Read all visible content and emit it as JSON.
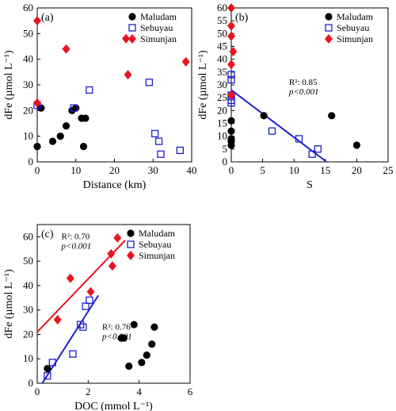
{
  "chart_data": [
    {
      "id": "a",
      "type": "scatter",
      "panel_label": "(a)",
      "xlabel": "Distance (km)",
      "ylabel": "dFe (µmol L⁻¹)",
      "xlim": [
        0,
        40
      ],
      "ylim": [
        0,
        60
      ],
      "xticks": [
        0,
        10,
        20,
        30,
        40
      ],
      "yticks": [
        0,
        10,
        20,
        30,
        40,
        50,
        60
      ],
      "legend_position": "top-right",
      "series": [
        {
          "name": "Maludam",
          "marker": "circle",
          "color": "#000000",
          "points": [
            [
              0,
              6
            ],
            [
              1,
              21
            ],
            [
              4,
              8
            ],
            [
              6,
              10
            ],
            [
              7.5,
              14
            ],
            [
              9,
              20
            ],
            [
              10,
              21
            ],
            [
              11.5,
              17
            ],
            [
              12,
              6
            ],
            [
              12.5,
              17
            ]
          ]
        },
        {
          "name": "Sebuyau",
          "marker": "square",
          "color": "#1f1fd0",
          "points": [
            [
              0,
              22
            ],
            [
              9.5,
              21
            ],
            [
              13.5,
              28
            ],
            [
              29,
              31
            ],
            [
              30.5,
              11
            ],
            [
              31.5,
              8
            ],
            [
              32,
              3
            ],
            [
              37,
              4.5
            ]
          ]
        },
        {
          "name": "Simunjan",
          "marker": "diamond",
          "color": "#e8141e",
          "points": [
            [
              0,
              55
            ],
            [
              0,
              23
            ],
            [
              7.5,
              44
            ],
            [
              23,
              48
            ],
            [
              23.5,
              34
            ],
            [
              38.5,
              39
            ]
          ]
        }
      ]
    },
    {
      "id": "b",
      "type": "scatter",
      "panel_label": "(b)",
      "xlabel": "S",
      "ylabel": "dFe (µmol L⁻¹)",
      "xlim": [
        0,
        25
      ],
      "ylim": [
        0,
        60
      ],
      "xticks": [
        0,
        5,
        10,
        15,
        20,
        25
      ],
      "yticks": [
        0,
        5,
        10,
        15,
        20,
        25,
        30,
        35,
        40,
        45,
        50,
        55,
        60
      ],
      "legend_position": "top-right",
      "annotation": {
        "r2": "R²: 0.85",
        "p": "p<0.001"
      },
      "fit_line": {
        "color": "#1f1fd0",
        "from": [
          0,
          28
        ],
        "to": [
          15.2,
          0
        ]
      },
      "series": [
        {
          "name": "Maludam",
          "marker": "circle",
          "color": "#000000",
          "points": [
            [
              0,
              6.5
            ],
            [
              0,
              8
            ],
            [
              0,
              9
            ],
            [
              0,
              12
            ],
            [
              0,
              16
            ],
            [
              5.2,
              18
            ],
            [
              16,
              18
            ],
            [
              20,
              6.5
            ]
          ]
        },
        {
          "name": "Sebuyau",
          "marker": "square",
          "color": "#1f1fd0",
          "points": [
            [
              0,
              34
            ],
            [
              0,
              32
            ],
            [
              0,
              26
            ],
            [
              0,
              24
            ],
            [
              0,
              23
            ],
            [
              6.5,
              12
            ],
            [
              10.8,
              9
            ],
            [
              12.9,
              3
            ],
            [
              13.8,
              5
            ]
          ]
        },
        {
          "name": "Simunjan",
          "marker": "diamond",
          "color": "#e8141e",
          "points": [
            [
              0,
              60
            ],
            [
              0,
              53
            ],
            [
              0,
              49
            ],
            [
              0.3,
              43
            ],
            [
              0,
              38
            ],
            [
              0,
              26
            ]
          ]
        }
      ]
    },
    {
      "id": "c",
      "type": "scatter",
      "panel_label": "(c)",
      "xlabel": "DOC (mmol L⁻¹)",
      "ylabel": "dFe (µmol L⁻¹)",
      "xlim": [
        0,
        6
      ],
      "ylim": [
        0,
        65
      ],
      "xticks": [
        0,
        2,
        4,
        6
      ],
      "yticks": [
        0,
        10,
        20,
        30,
        40,
        50,
        60
      ],
      "legend_position": "top-right",
      "annotations": [
        {
          "r2": "R²: 0.70",
          "p": "p<0.001",
          "anchor": "upper-left"
        },
        {
          "r2": "R²: 0.76",
          "p": "p<0.001",
          "anchor": "middle"
        }
      ],
      "fit_lines": [
        {
          "color": "#e8141e",
          "from": [
            0,
            21
          ],
          "to": [
            3.45,
            58.5
          ]
        },
        {
          "color": "#1f1fd0",
          "from": [
            0.2,
            0
          ],
          "to": [
            2.4,
            36
          ]
        }
      ],
      "series": [
        {
          "name": "Maludam",
          "marker": "circle",
          "color": "#000000",
          "points": [
            [
              0.4,
              6
            ],
            [
              3.3,
              18.5
            ],
            [
              3.4,
              18.5
            ],
            [
              3.6,
              7
            ],
            [
              3.8,
              24
            ],
            [
              4.1,
              8.5
            ],
            [
              4.3,
              11.5
            ],
            [
              4.5,
              16
            ],
            [
              4.6,
              23
            ]
          ]
        },
        {
          "name": "Sebuyau",
          "marker": "square",
          "color": "#1f1fd0",
          "points": [
            [
              0.4,
              3
            ],
            [
              0.6,
              8.5
            ],
            [
              1.4,
              12
            ],
            [
              1.7,
              24
            ],
            [
              1.8,
              23
            ],
            [
              1.9,
              31.5
            ],
            [
              2.05,
              34
            ]
          ]
        },
        {
          "name": "Simunjan",
          "marker": "diamond",
          "color": "#e8141e",
          "points": [
            [
              0.8,
              26
            ],
            [
              1.3,
              43
            ],
            [
              2.1,
              37.5
            ],
            [
              2.9,
              53
            ],
            [
              2.95,
              48
            ],
            [
              3.15,
              59.5
            ]
          ]
        }
      ]
    }
  ]
}
